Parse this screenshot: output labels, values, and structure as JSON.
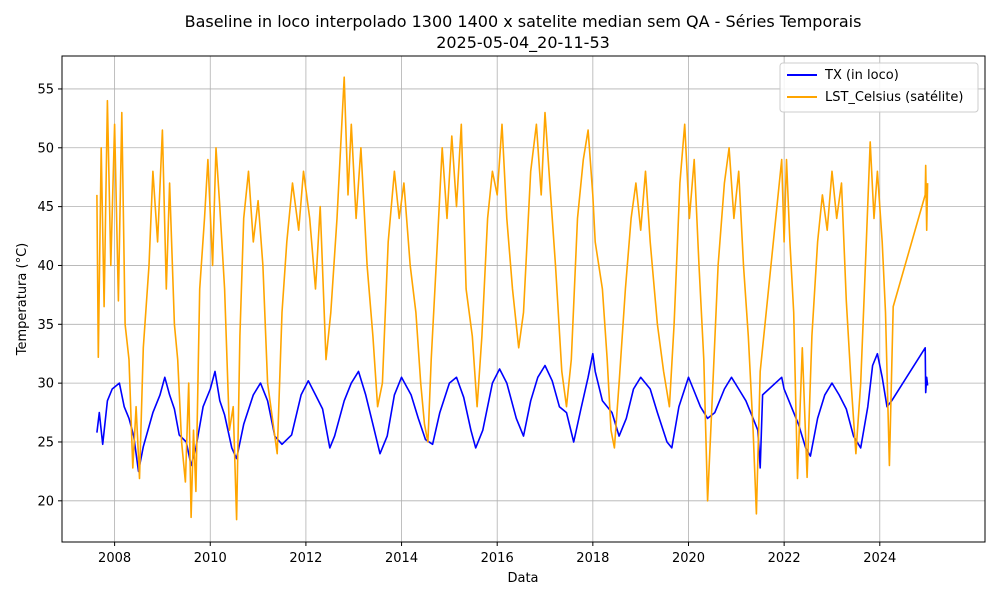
{
  "chart_data": {
    "type": "line",
    "title": "Baseline in loco interpolado 1300 1400 x satelite median sem QA - Séries Temporais",
    "subtitle": "2025-05-04_20-11-53",
    "xlabel": "Data",
    "ylabel": "Temperatura (°C)",
    "xlim": [
      2006.9,
      2026.2
    ],
    "ylim": [
      16.5,
      57.8
    ],
    "xticks": [
      "2008",
      "2010",
      "2012",
      "2014",
      "2016",
      "2018",
      "2020",
      "2022",
      "2024"
    ],
    "yticks": [
      20,
      25,
      30,
      35,
      40,
      45,
      50,
      55
    ],
    "grid": true,
    "legend_position": "top-right",
    "series": [
      {
        "name": "TX (in loco)",
        "color": "#0000ff",
        "points": [
          [
            2007.63,
            25.8
          ],
          [
            2007.68,
            27.5
          ],
          [
            2007.75,
            24.8
          ],
          [
            2007.85,
            28.5
          ],
          [
            2007.95,
            29.5
          ],
          [
            2008.1,
            30.0
          ],
          [
            2008.2,
            28.0
          ],
          [
            2008.3,
            27.0
          ],
          [
            2008.4,
            25.5
          ],
          [
            2008.5,
            22.5
          ],
          [
            2008.6,
            24.6
          ],
          [
            2008.8,
            27.5
          ],
          [
            2008.95,
            29.0
          ],
          [
            2009.05,
            30.5
          ],
          [
            2009.15,
            29.0
          ],
          [
            2009.25,
            27.8
          ],
          [
            2009.35,
            25.6
          ],
          [
            2009.5,
            25.0
          ],
          [
            2009.6,
            23.0
          ],
          [
            2009.7,
            24.5
          ],
          [
            2009.85,
            28.0
          ],
          [
            2010.0,
            29.5
          ],
          [
            2010.1,
            31.0
          ],
          [
            2010.2,
            28.5
          ],
          [
            2010.3,
            27.3
          ],
          [
            2010.45,
            24.5
          ],
          [
            2010.55,
            23.6
          ],
          [
            2010.7,
            26.5
          ],
          [
            2010.9,
            29.0
          ],
          [
            2011.05,
            30.0
          ],
          [
            2011.2,
            28.5
          ],
          [
            2011.35,
            25.5
          ],
          [
            2011.5,
            24.8
          ],
          [
            2011.7,
            25.6
          ],
          [
            2011.9,
            29.0
          ],
          [
            2012.05,
            30.2
          ],
          [
            2012.2,
            29.0
          ],
          [
            2012.35,
            27.8
          ],
          [
            2012.5,
            24.5
          ],
          [
            2012.6,
            25.5
          ],
          [
            2012.8,
            28.5
          ],
          [
            2012.95,
            30.0
          ],
          [
            2013.1,
            31.0
          ],
          [
            2013.25,
            29.0
          ],
          [
            2013.4,
            26.5
          ],
          [
            2013.55,
            24.0
          ],
          [
            2013.7,
            25.5
          ],
          [
            2013.85,
            29.0
          ],
          [
            2014.0,
            30.5
          ],
          [
            2014.2,
            29.0
          ],
          [
            2014.35,
            27.0
          ],
          [
            2014.5,
            25.2
          ],
          [
            2014.65,
            24.8
          ],
          [
            2014.8,
            27.5
          ],
          [
            2015.0,
            30.0
          ],
          [
            2015.15,
            30.5
          ],
          [
            2015.3,
            28.8
          ],
          [
            2015.45,
            26.0
          ],
          [
            2015.55,
            24.5
          ],
          [
            2015.7,
            26.0
          ],
          [
            2015.9,
            30.0
          ],
          [
            2016.05,
            31.2
          ],
          [
            2016.2,
            30.0
          ],
          [
            2016.4,
            27.0
          ],
          [
            2016.55,
            25.5
          ],
          [
            2016.7,
            28.5
          ],
          [
            2016.85,
            30.5
          ],
          [
            2017.0,
            31.5
          ],
          [
            2017.15,
            30.2
          ],
          [
            2017.3,
            28.0
          ],
          [
            2017.45,
            27.5
          ],
          [
            2017.6,
            25.0
          ],
          [
            2017.75,
            27.8
          ],
          [
            2017.9,
            30.5
          ],
          [
            2018.0,
            32.5
          ],
          [
            2018.05,
            31.0
          ],
          [
            2018.2,
            28.5
          ],
          [
            2018.4,
            27.5
          ],
          [
            2018.55,
            25.5
          ],
          [
            2018.7,
            27.0
          ],
          [
            2018.85,
            29.5
          ],
          [
            2019.0,
            30.5
          ],
          [
            2019.2,
            29.5
          ],
          [
            2019.35,
            27.5
          ],
          [
            2019.55,
            25.0
          ],
          [
            2019.65,
            24.5
          ],
          [
            2019.8,
            28.0
          ],
          [
            2020.0,
            30.5
          ],
          [
            2020.1,
            29.5
          ],
          [
            2020.25,
            28.0
          ],
          [
            2020.4,
            27.0
          ],
          [
            2020.55,
            27.5
          ],
          [
            2020.75,
            29.5
          ],
          [
            2020.9,
            30.5
          ],
          [
            2021.05,
            29.5
          ],
          [
            2021.2,
            28.5
          ],
          [
            2021.35,
            27.0
          ],
          [
            2021.45,
            26.0
          ],
          [
            2021.5,
            22.8
          ],
          [
            2021.55,
            29.0
          ],
          [
            2021.95,
            30.5
          ],
          [
            2022.0,
            29.5
          ],
          [
            2022.15,
            28.0
          ],
          [
            2022.3,
            26.5
          ],
          [
            2022.45,
            24.5
          ],
          [
            2022.55,
            23.8
          ],
          [
            2022.7,
            27.0
          ],
          [
            2022.85,
            29.0
          ],
          [
            2023.0,
            30.0
          ],
          [
            2023.15,
            29.0
          ],
          [
            2023.3,
            27.8
          ],
          [
            2023.45,
            25.5
          ],
          [
            2023.6,
            24.5
          ],
          [
            2023.75,
            28.0
          ],
          [
            2023.85,
            31.5
          ],
          [
            2023.95,
            32.5
          ],
          [
            2024.05,
            30.5
          ],
          [
            2024.15,
            28.0
          ],
          [
            2024.25,
            28.5
          ],
          [
            2024.95,
            33.0
          ],
          [
            2024.96,
            29.2
          ],
          [
            2024.98,
            30.5
          ],
          [
            2025.0,
            29.8
          ]
        ]
      },
      {
        "name": "LST_Celsius (satélite)",
        "color": "#ffa500",
        "points": [
          [
            2007.63,
            46.0
          ],
          [
            2007.66,
            32.2
          ],
          [
            2007.72,
            50.0
          ],
          [
            2007.78,
            36.5
          ],
          [
            2007.85,
            54.0
          ],
          [
            2007.92,
            40.0
          ],
          [
            2008.0,
            52.0
          ],
          [
            2008.08,
            37.0
          ],
          [
            2008.15,
            53.0
          ],
          [
            2008.22,
            35.0
          ],
          [
            2008.3,
            32.0
          ],
          [
            2008.38,
            22.8
          ],
          [
            2008.45,
            28.0
          ],
          [
            2008.52,
            21.9
          ],
          [
            2008.6,
            33.0
          ],
          [
            2008.72,
            40.0
          ],
          [
            2008.8,
            48.0
          ],
          [
            2008.9,
            42.0
          ],
          [
            2009.0,
            51.5
          ],
          [
            2009.08,
            38.0
          ],
          [
            2009.15,
            47.0
          ],
          [
            2009.25,
            35.0
          ],
          [
            2009.32,
            32.0
          ],
          [
            2009.4,
            25.0
          ],
          [
            2009.48,
            21.6
          ],
          [
            2009.55,
            30.0
          ],
          [
            2009.6,
            18.6
          ],
          [
            2009.65,
            26.0
          ],
          [
            2009.7,
            20.8
          ],
          [
            2009.78,
            38.0
          ],
          [
            2009.88,
            44.0
          ],
          [
            2009.95,
            49.0
          ],
          [
            2010.05,
            40.0
          ],
          [
            2010.12,
            50.0
          ],
          [
            2010.2,
            45.0
          ],
          [
            2010.3,
            38.0
          ],
          [
            2010.4,
            26.0
          ],
          [
            2010.48,
            28.0
          ],
          [
            2010.55,
            18.4
          ],
          [
            2010.62,
            34.0
          ],
          [
            2010.7,
            44.0
          ],
          [
            2010.8,
            48.0
          ],
          [
            2010.9,
            42.0
          ],
          [
            2011.0,
            45.5
          ],
          [
            2011.1,
            40.0
          ],
          [
            2011.2,
            30.0
          ],
          [
            2011.3,
            27.0
          ],
          [
            2011.4,
            24.0
          ],
          [
            2011.5,
            36.0
          ],
          [
            2011.6,
            42.0
          ],
          [
            2011.72,
            47.0
          ],
          [
            2011.85,
            43.0
          ],
          [
            2011.95,
            48.0
          ],
          [
            2012.08,
            44.0
          ],
          [
            2012.2,
            38.0
          ],
          [
            2012.3,
            45.0
          ],
          [
            2012.42,
            32.0
          ],
          [
            2012.52,
            36.0
          ],
          [
            2012.65,
            44.0
          ],
          [
            2012.8,
            56.0
          ],
          [
            2012.88,
            46.0
          ],
          [
            2012.95,
            52.0
          ],
          [
            2013.05,
            44.0
          ],
          [
            2013.15,
            50.0
          ],
          [
            2013.28,
            40.0
          ],
          [
            2013.4,
            34.0
          ],
          [
            2013.5,
            28.0
          ],
          [
            2013.6,
            30.0
          ],
          [
            2013.72,
            42.0
          ],
          [
            2013.85,
            48.0
          ],
          [
            2013.95,
            44.0
          ],
          [
            2014.05,
            47.0
          ],
          [
            2014.18,
            40.0
          ],
          [
            2014.3,
            36.0
          ],
          [
            2014.4,
            30.0
          ],
          [
            2014.48,
            26.5
          ],
          [
            2014.55,
            25.0
          ],
          [
            2014.62,
            32.0
          ],
          [
            2014.75,
            42.0
          ],
          [
            2014.85,
            50.0
          ],
          [
            2014.95,
            44.0
          ],
          [
            2015.05,
            51.0
          ],
          [
            2015.15,
            45.0
          ],
          [
            2015.25,
            52.0
          ],
          [
            2015.35,
            38.0
          ],
          [
            2015.48,
            34.0
          ],
          [
            2015.58,
            28.0
          ],
          [
            2015.68,
            34.0
          ],
          [
            2015.8,
            44.0
          ],
          [
            2015.9,
            48.0
          ],
          [
            2016.0,
            46.0
          ],
          [
            2016.1,
            52.0
          ],
          [
            2016.2,
            44.0
          ],
          [
            2016.32,
            38.0
          ],
          [
            2016.45,
            33.0
          ],
          [
            2016.55,
            36.0
          ],
          [
            2016.7,
            48.0
          ],
          [
            2016.82,
            52.0
          ],
          [
            2016.92,
            46.0
          ],
          [
            2017.0,
            53.0
          ],
          [
            2017.1,
            47.0
          ],
          [
            2017.22,
            40.0
          ],
          [
            2017.35,
            31.0
          ],
          [
            2017.45,
            28.0
          ],
          [
            2017.55,
            32.0
          ],
          [
            2017.68,
            44.0
          ],
          [
            2017.8,
            49.0
          ],
          [
            2017.9,
            51.5
          ],
          [
            2018.0,
            46.0
          ],
          [
            2018.05,
            42.0
          ],
          [
            2018.2,
            38.0
          ],
          [
            2018.3,
            32.0
          ],
          [
            2018.38,
            26.0
          ],
          [
            2018.45,
            24.5
          ],
          [
            2018.55,
            30.0
          ],
          [
            2018.68,
            38.0
          ],
          [
            2018.8,
            44.0
          ],
          [
            2018.9,
            47.0
          ],
          [
            2019.0,
            43.0
          ],
          [
            2019.1,
            48.0
          ],
          [
            2019.2,
            42.0
          ],
          [
            2019.35,
            35.0
          ],
          [
            2019.48,
            31.0
          ],
          [
            2019.6,
            28.0
          ],
          [
            2019.7,
            35.0
          ],
          [
            2019.82,
            47.0
          ],
          [
            2019.92,
            52.0
          ],
          [
            2020.02,
            44.0
          ],
          [
            2020.12,
            49.0
          ],
          [
            2020.22,
            40.0
          ],
          [
            2020.32,
            32.0
          ],
          [
            2020.4,
            20.0
          ],
          [
            2020.5,
            29.0
          ],
          [
            2020.62,
            40.0
          ],
          [
            2020.75,
            47.0
          ],
          [
            2020.85,
            50.0
          ],
          [
            2020.95,
            44.0
          ],
          [
            2021.05,
            48.0
          ],
          [
            2021.15,
            40.0
          ],
          [
            2021.25,
            34.0
          ],
          [
            2021.35,
            26.0
          ],
          [
            2021.42,
            18.9
          ],
          [
            2021.5,
            31.0
          ],
          [
            2021.95,
            49.0
          ],
          [
            2022.0,
            42.0
          ],
          [
            2022.05,
            49.0
          ],
          [
            2022.12,
            42.0
          ],
          [
            2022.2,
            36.0
          ],
          [
            2022.28,
            21.9
          ],
          [
            2022.38,
            33.0
          ],
          [
            2022.48,
            22.0
          ],
          [
            2022.58,
            34.0
          ],
          [
            2022.7,
            42.0
          ],
          [
            2022.8,
            46.0
          ],
          [
            2022.9,
            43.0
          ],
          [
            2023.0,
            48.0
          ],
          [
            2023.1,
            44.0
          ],
          [
            2023.2,
            47.0
          ],
          [
            2023.3,
            37.0
          ],
          [
            2023.4,
            30.0
          ],
          [
            2023.5,
            24.0
          ],
          [
            2023.6,
            30.0
          ],
          [
            2023.7,
            40.0
          ],
          [
            2023.8,
            50.5
          ],
          [
            2023.88,
            44.0
          ],
          [
            2023.95,
            48.0
          ],
          [
            2024.05,
            42.0
          ],
          [
            2024.12,
            36.0
          ],
          [
            2024.2,
            23.0
          ],
          [
            2024.28,
            36.5
          ],
          [
            2024.95,
            46.0
          ],
          [
            2024.96,
            48.5
          ],
          [
            2024.98,
            43.0
          ],
          [
            2025.0,
            47.0
          ]
        ]
      }
    ]
  }
}
